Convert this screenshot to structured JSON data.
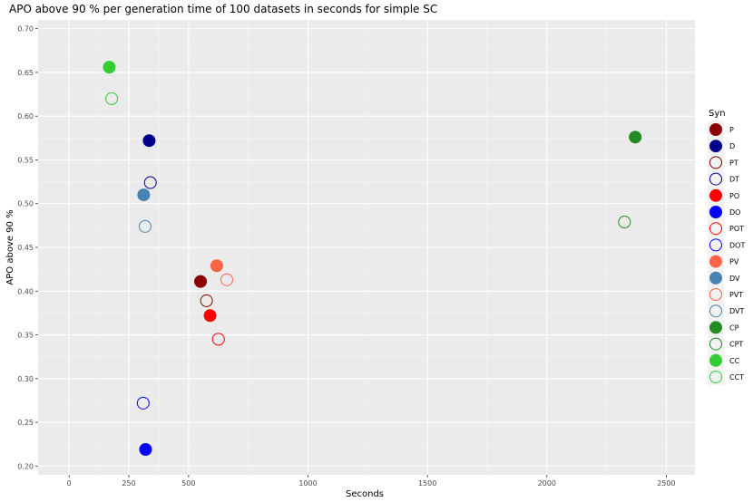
{
  "chart_data": {
    "type": "scatter",
    "title": "APO above 90 % per generation time of 100 datasets in seconds for simple SC",
    "xlabel": "Seconds",
    "ylabel": "APO above 90 %",
    "xlim": [
      -130,
      2620
    ],
    "ylim": [
      0.19,
      0.71
    ],
    "x_ticks": [
      0,
      250,
      500,
      1000,
      1500,
      2000,
      2500
    ],
    "y_ticks": [
      0.2,
      0.25,
      0.3,
      0.35,
      0.4,
      0.45,
      0.5,
      0.55,
      0.6,
      0.65,
      0.7
    ],
    "grid": true,
    "legend_title": "Syn",
    "legend_position": "right",
    "series": [
      {
        "name": "P",
        "color": "#8B0000",
        "filled": true,
        "points": [
          [
            550,
            0.411
          ]
        ]
      },
      {
        "name": "D",
        "color": "#00008B",
        "filled": true,
        "points": [
          [
            335,
            0.572
          ]
        ]
      },
      {
        "name": "PT",
        "color": "#8B0000",
        "filled": false,
        "points": [
          [
            575,
            0.389
          ]
        ]
      },
      {
        "name": "DT",
        "color": "#00008B",
        "filled": false,
        "points": [
          [
            340,
            0.524
          ]
        ]
      },
      {
        "name": "PO",
        "color": "#FF0000",
        "filled": true,
        "points": [
          [
            590,
            0.372
          ]
        ]
      },
      {
        "name": "DO",
        "color": "#0000FF",
        "filled": true,
        "points": [
          [
            320,
            0.219
          ]
        ]
      },
      {
        "name": "POT",
        "color": "#FF0000",
        "filled": false,
        "points": [
          [
            625,
            0.345
          ]
        ]
      },
      {
        "name": "DOT",
        "color": "#0000FF",
        "filled": false,
        "points": [
          [
            310,
            0.272
          ]
        ]
      },
      {
        "name": "PV",
        "color": "#FF6347",
        "filled": true,
        "points": [
          [
            618,
            0.429
          ]
        ]
      },
      {
        "name": "DV",
        "color": "#4682B4",
        "filled": true,
        "points": [
          [
            312,
            0.51
          ]
        ]
      },
      {
        "name": "PVT",
        "color": "#FF6347",
        "filled": false,
        "points": [
          [
            660,
            0.413
          ]
        ]
      },
      {
        "name": "DVT",
        "color": "#4682B4",
        "filled": false,
        "points": [
          [
            318,
            0.474
          ]
        ]
      },
      {
        "name": "CP",
        "color": "#228B22",
        "filled": true,
        "points": [
          [
            2370,
            0.576
          ]
        ]
      },
      {
        "name": "CPT",
        "color": "#228B22",
        "filled": false,
        "points": [
          [
            2325,
            0.479
          ]
        ]
      },
      {
        "name": "CC",
        "color": "#32CD32",
        "filled": true,
        "points": [
          [
            168,
            0.656
          ]
        ]
      },
      {
        "name": "CCT",
        "color": "#32CD32",
        "filled": false,
        "points": [
          [
            178,
            0.62
          ]
        ]
      }
    ]
  }
}
